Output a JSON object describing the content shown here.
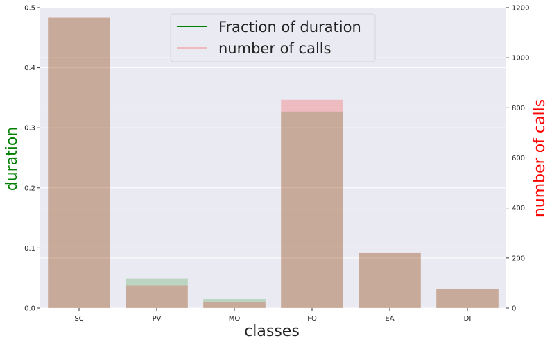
{
  "chart_data": {
    "type": "bar",
    "xlabel": "classes",
    "ylabel_left": "duration",
    "ylabel_right": "number of calls",
    "categories": [
      "SC",
      "PV",
      "MO",
      "FO",
      "EA",
      "DI"
    ],
    "ylim_left": [
      0,
      0.5
    ],
    "ylim_right": [
      0,
      1200
    ],
    "yticks_left": [
      "0.0",
      "0.1",
      "0.2",
      "0.3",
      "0.4",
      "0.5"
    ],
    "yticks_right": [
      "0",
      "200",
      "400",
      "600",
      "800",
      "1000",
      "1200"
    ],
    "grid": true,
    "legend_position": "top-center",
    "series": [
      {
        "name": "Fraction of duration",
        "axis": "left",
        "values": [
          0.483,
          0.049,
          0.015,
          0.327,
          0.092,
          0.032
        ],
        "color": "#008000",
        "alpha": 0.2
      },
      {
        "name": "number of calls",
        "axis": "right",
        "values": [
          1160,
          90,
          25,
          832,
          222,
          77
        ],
        "color": "#ff0000",
        "alpha": 0.2
      }
    ],
    "colors": {
      "plot_background": "#eaeaf2",
      "grid": "#ffffff",
      "left_label": "#008000",
      "right_label": "#ff0000"
    }
  }
}
